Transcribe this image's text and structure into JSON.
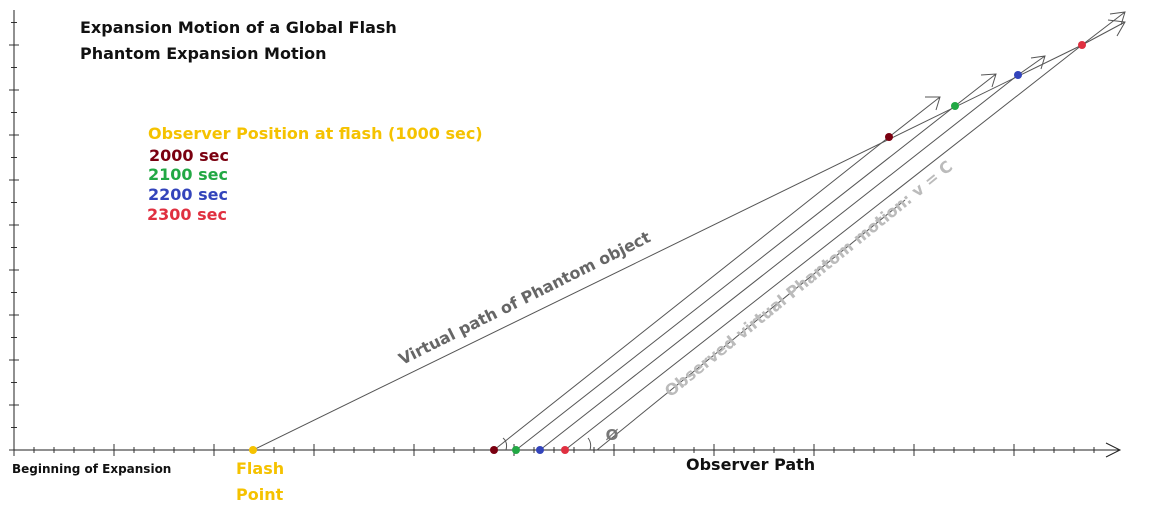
{
  "title": "Expansion Motion of a Global Flash",
  "subtitle": "Phantom Expansion Motion",
  "legend": [
    "Observer Position at flash (1000 sec)",
    "2000 sec",
    "2100 sec",
    "2200 sec",
    "2300 sec"
  ],
  "labels": {
    "virtual_path": "Virtual path of Phantom object",
    "observed_motion": "Observed virtual Phantom motion: v = C",
    "angle": "Ø",
    "origin": "Beginning of Expansion",
    "flash_point": [
      "Flash",
      "Point"
    ],
    "observer_path": "Observer Path"
  }
}
